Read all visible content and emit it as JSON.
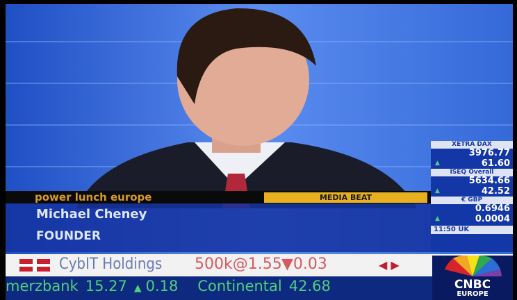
{
  "lower_third": {
    "show": "power lunch europe",
    "segment": "MEDIA BEAT",
    "name": "Michael Cheney",
    "role": "FOUNDER"
  },
  "market_panel": {
    "items": [
      {
        "label": "XETRA DAX",
        "value": "3976.77",
        "change": "61.60"
      },
      {
        "label": "ISEQ Overall",
        "value": "5634.66",
        "change": "42.52"
      },
      {
        "label": "€ GBP",
        "value": "0.6946",
        "change": "0.0004"
      }
    ],
    "time": "11:50 UK"
  },
  "ticker_top": {
    "company": "CybIT Holdings",
    "trade": "500k@1.55",
    "change": "0.03"
  },
  "ticker_bottom": {
    "items": [
      {
        "name": "merzbank",
        "price": "15.27",
        "change": "0.18"
      },
      {
        "name": "Continental",
        "price": "42.68"
      }
    ]
  },
  "logo": {
    "brand": "CNBC",
    "region": "EUROPE"
  }
}
